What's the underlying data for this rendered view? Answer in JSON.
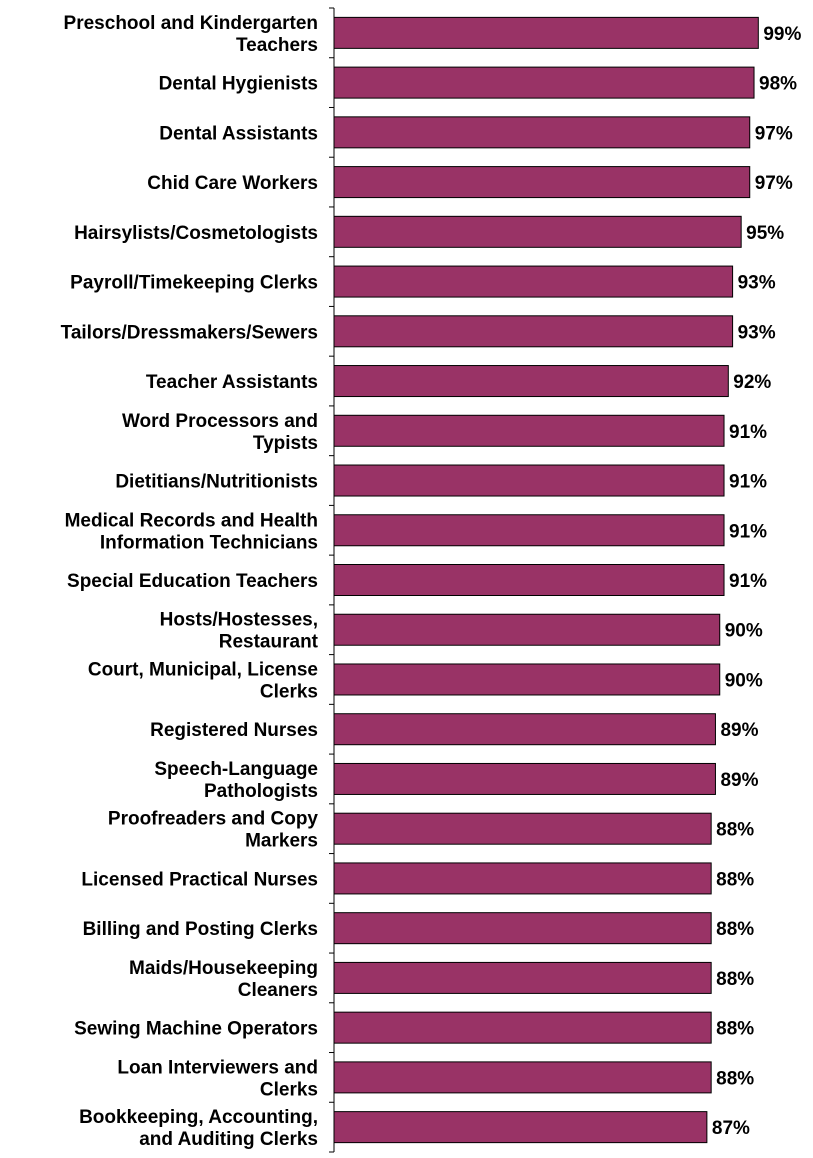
{
  "chart_data": {
    "type": "bar",
    "orientation": "horizontal",
    "categories": [
      [
        "Preschool and Kindergarten",
        "Teachers"
      ],
      [
        "Dental Hygienists"
      ],
      [
        "Dental Assistants"
      ],
      [
        "Chid Care Workers"
      ],
      [
        "Hairsylists/Cosmetologists"
      ],
      [
        "Payroll/Timekeeping Clerks"
      ],
      [
        "Tailors/Dressmakers/Sewers"
      ],
      [
        "Teacher Assistants"
      ],
      [
        "Word Processors and",
        "Typists"
      ],
      [
        "Dietitians/Nutritionists"
      ],
      [
        "Medical Records and Health",
        "Information Technicians"
      ],
      [
        "Special Education Teachers"
      ],
      [
        "Hosts/Hostesses,",
        "Restaurant"
      ],
      [
        "Court, Municipal, License",
        "Clerks"
      ],
      [
        "Registered Nurses"
      ],
      [
        "Speech-Language",
        "Pathologists"
      ],
      [
        "Proofreaders and Copy",
        "Markers"
      ],
      [
        "Licensed Practical Nurses"
      ],
      [
        "Billing and Posting Clerks"
      ],
      [
        "Maids/Housekeeping",
        "Cleaners"
      ],
      [
        "Sewing Machine Operators"
      ],
      [
        "Loan Interviewers and",
        "Clerks"
      ],
      [
        "Bookkeeping, Accounting,",
        "and Auditing Clerks"
      ]
    ],
    "values": [
      99,
      98,
      97,
      97,
      95,
      93,
      93,
      92,
      91,
      91,
      91,
      91,
      90,
      90,
      89,
      89,
      88,
      88,
      88,
      88,
      88,
      88,
      87
    ],
    "value_labels": [
      "99%",
      "98%",
      "97%",
      "97%",
      "95%",
      "93%",
      "93%",
      "92%",
      "91%",
      "91%",
      "91%",
      "91%",
      "90%",
      "90%",
      "89%",
      "89%",
      "88%",
      "88%",
      "88%",
      "88%",
      "88%",
      "88%",
      "87%"
    ],
    "bar_color": "#993366",
    "xlim": [
      0,
      100
    ],
    "grid": false,
    "legend": "none"
  }
}
